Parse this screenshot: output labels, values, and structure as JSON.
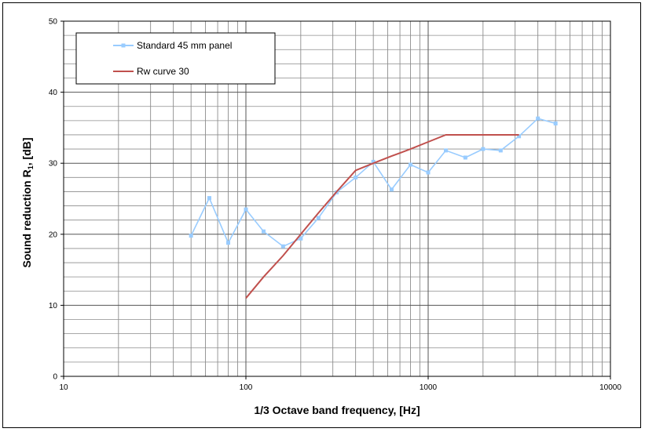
{
  "chart_data": {
    "type": "line",
    "xscale": "log",
    "xlim": [
      10,
      10000
    ],
    "ylim": [
      0,
      50
    ],
    "xlabel": "1/3 Octave band frequency, [Hz]",
    "ylabel": "Sound reduction R",
    "ylabel_subscript": "1",
    "ylabel_unit": ", [dB]",
    "grid": true,
    "legend_position": "top-left",
    "xticks": [
      10,
      100,
      1000,
      10000
    ],
    "xtick_labels": [
      "10",
      "100",
      "1000",
      "10000"
    ],
    "yticks": [
      0,
      10,
      20,
      30,
      40,
      50
    ],
    "ytick_labels": [
      "0",
      "10",
      "20",
      "30",
      "40",
      "50"
    ],
    "series": [
      {
        "name": "Standard 45 mm panel",
        "color": "#99ccff",
        "marker": "square",
        "x": [
          50,
          63,
          80,
          100,
          125,
          160,
          200,
          250,
          315,
          400,
          500,
          630,
          800,
          1000,
          1250,
          1600,
          2000,
          2500,
          3150,
          4000,
          5000
        ],
        "y": [
          19.8,
          25.1,
          18.8,
          23.5,
          20.4,
          18.3,
          19.4,
          22.3,
          25.9,
          28.0,
          30.2,
          26.3,
          29.8,
          28.7,
          31.8,
          30.8,
          32.0,
          31.8,
          33.8,
          36.3,
          35.6
        ]
      },
      {
        "name": "Rw curve 30",
        "color": "#c0504d",
        "marker": "none",
        "x": [
          100,
          125,
          160,
          200,
          250,
          315,
          400,
          500,
          630,
          800,
          1000,
          1250,
          1600,
          2000,
          2500,
          3150
        ],
        "y": [
          11,
          14,
          17,
          20,
          23,
          26,
          29,
          30,
          31,
          32,
          33,
          34,
          34,
          34,
          34,
          34
        ]
      }
    ]
  }
}
